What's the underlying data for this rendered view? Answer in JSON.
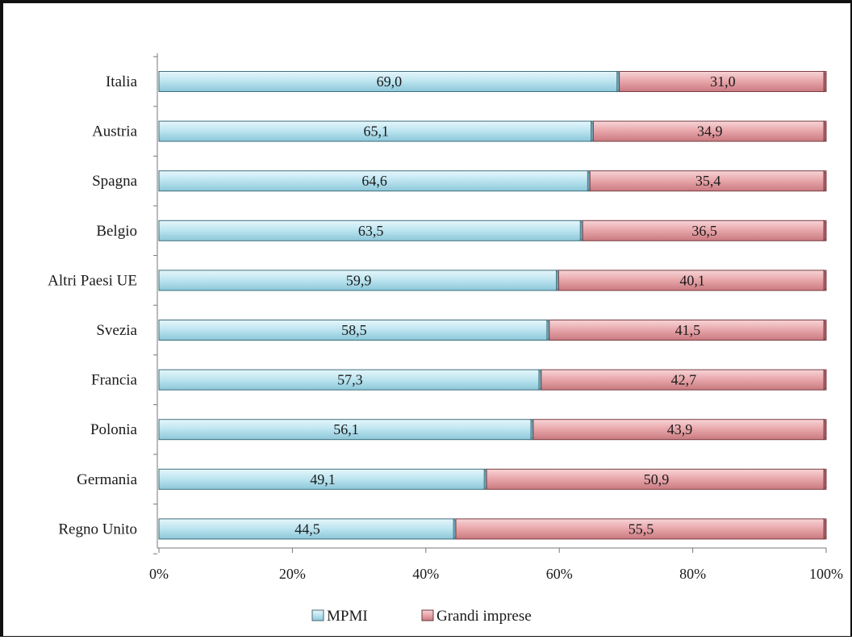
{
  "chart_data": {
    "type": "bar",
    "orientation": "horizontal",
    "stacked": "percent",
    "categories": [
      "Italia",
      "Austria",
      "Spagna",
      "Belgio",
      "Altri Paesi UE",
      "Svezia",
      "Francia",
      "Polonia",
      "Germania",
      "Regno Unito"
    ],
    "series": [
      {
        "name": "MPMI",
        "color": "#b9e3ef",
        "values": [
          69.0,
          65.1,
          64.6,
          63.5,
          59.9,
          58.5,
          57.3,
          56.1,
          49.1,
          44.5
        ],
        "labels": [
          "69,0",
          "65,1",
          "64,6",
          "63,5",
          "59,9",
          "58,5",
          "57,3",
          "56,1",
          "49,1",
          "44,5"
        ]
      },
      {
        "name": "Grandi imprese",
        "color": "#e8a6ab",
        "values": [
          31.0,
          34.9,
          35.4,
          36.5,
          40.1,
          41.5,
          42.7,
          43.9,
          50.9,
          55.5
        ],
        "labels": [
          "31,0",
          "34,9",
          "35,4",
          "36,5",
          "40,1",
          "41,5",
          "42,7",
          "43,9",
          "50,9",
          "55,5"
        ]
      }
    ],
    "xlim": [
      0,
      100
    ],
    "xticks": [
      "0%",
      "20%",
      "40%",
      "60%",
      "80%",
      "100%"
    ],
    "grid": false,
    "legend_position": "bottom"
  }
}
